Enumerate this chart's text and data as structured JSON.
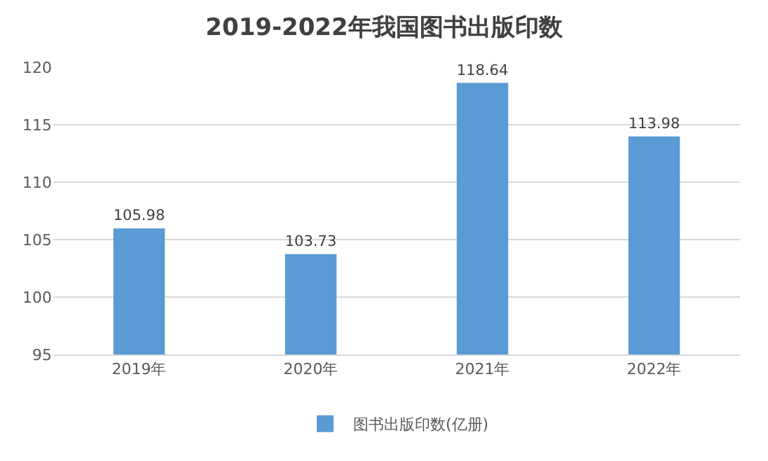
{
  "chart_data": {
    "type": "bar",
    "title": "2019-2022年我国图书出版印数",
    "categories": [
      "2019年",
      "2020年",
      "2021年",
      "2022年"
    ],
    "series": [
      {
        "name": "图书出版印数(亿册)",
        "color": "#5b9bd5",
        "values": [
          105.98,
          103.73,
          118.64,
          113.98
        ]
      }
    ],
    "ylim": [
      95,
      120
    ],
    "yticks": [
      95,
      100,
      105,
      110,
      115,
      120
    ],
    "grid": "y",
    "legend": "bottom",
    "data_labels": true
  }
}
